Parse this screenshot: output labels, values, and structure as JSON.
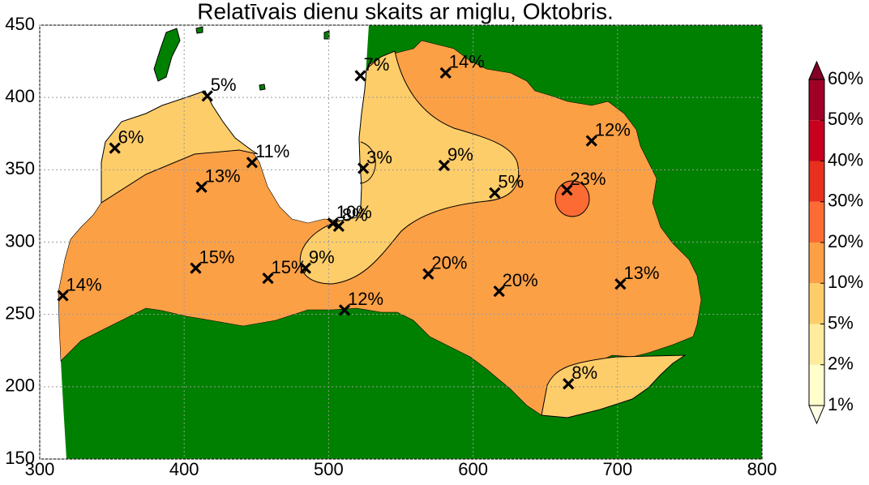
{
  "chart_data": {
    "type": "scatter",
    "title": "Relatīvais dienu skaits ar miglu, Oktobris.",
    "x": [
      316,
      352,
      416,
      412,
      447,
      408,
      458,
      484,
      503,
      507,
      522,
      524,
      581,
      580,
      511,
      569,
      615,
      665,
      682,
      618,
      702,
      666
    ],
    "y": [
      263,
      365,
      401,
      338,
      355,
      282,
      275,
      282,
      313,
      311,
      415,
      351,
      417,
      353,
      253,
      278,
      334,
      336,
      370,
      266,
      271,
      202
    ],
    "values": [
      14,
      6,
      5,
      13,
      11,
      15,
      15,
      9,
      10,
      8,
      7,
      3,
      14,
      9,
      12,
      20,
      5,
      23,
      12,
      20,
      13,
      8
    ],
    "value_labels": [
      "14%",
      "6%",
      "5%",
      "13%",
      "11%",
      "15%",
      "15%",
      "9%",
      "10%",
      "8%",
      "7%",
      "3%",
      "14%",
      "9%",
      "12%",
      "20%",
      "5%",
      "23%",
      "12%",
      "20%",
      "13%",
      "8%"
    ],
    "xlim": [
      300,
      800
    ],
    "ylim": [
      150,
      450
    ],
    "xticks": [
      300,
      400,
      500,
      600,
      700,
      800
    ],
    "yticks": [
      150,
      200,
      250,
      300,
      350,
      400,
      450
    ],
    "grid": true,
    "land_color": "#008000",
    "colorbar": {
      "ticks": [
        {
          "value": 1,
          "label": "1%"
        },
        {
          "value": 2,
          "label": "2%"
        },
        {
          "value": 5,
          "label": "5%"
        },
        {
          "value": 10,
          "label": "10%"
        },
        {
          "value": 20,
          "label": "20%"
        },
        {
          "value": 30,
          "label": "30%"
        },
        {
          "value": 40,
          "label": "40%"
        },
        {
          "value": 50,
          "label": "50%"
        },
        {
          "value": 60,
          "label": "60%"
        }
      ],
      "colors": [
        "#ffffcc",
        "#feeb9e",
        "#fdcd6a",
        "#fca046",
        "#fc6b34",
        "#e8301f",
        "#c8001f",
        "#a00026"
      ],
      "under_color": "#ffffe5",
      "over_color": "#800026"
    }
  }
}
